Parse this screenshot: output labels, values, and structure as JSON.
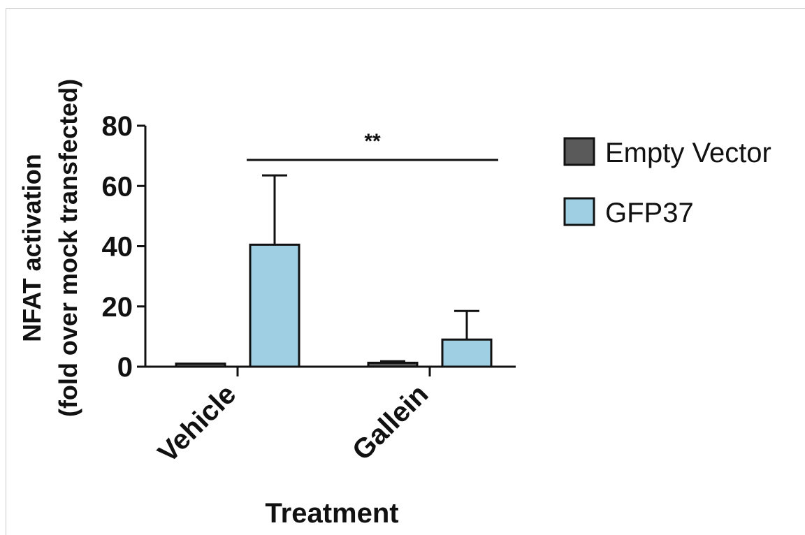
{
  "chart_data": {
    "type": "bar",
    "title": "",
    "ylabel_line1": "NFAT activation",
    "ylabel_line2": "(fold over mock transfected)",
    "xlabel": "Treatment",
    "ylim": [
      0,
      80
    ],
    "yticks": [
      0,
      20,
      40,
      60,
      80
    ],
    "categories": [
      "Vehicle",
      "Gallein"
    ],
    "series": [
      {
        "name": "Empty Vector",
        "color": "#5a5a5a",
        "values": [
          1,
          1.3
        ],
        "errors": [
          0,
          0.5
        ]
      },
      {
        "name": "GFP37",
        "color": "#9fcfe3",
        "values": [
          40.5,
          9
        ],
        "errors": [
          23,
          9.5
        ]
      }
    ],
    "legend_position": "right",
    "annotation": {
      "text": "**",
      "between": [
        "Vehicle GFP37",
        "Gallein GFP37"
      ]
    },
    "grid": false
  }
}
